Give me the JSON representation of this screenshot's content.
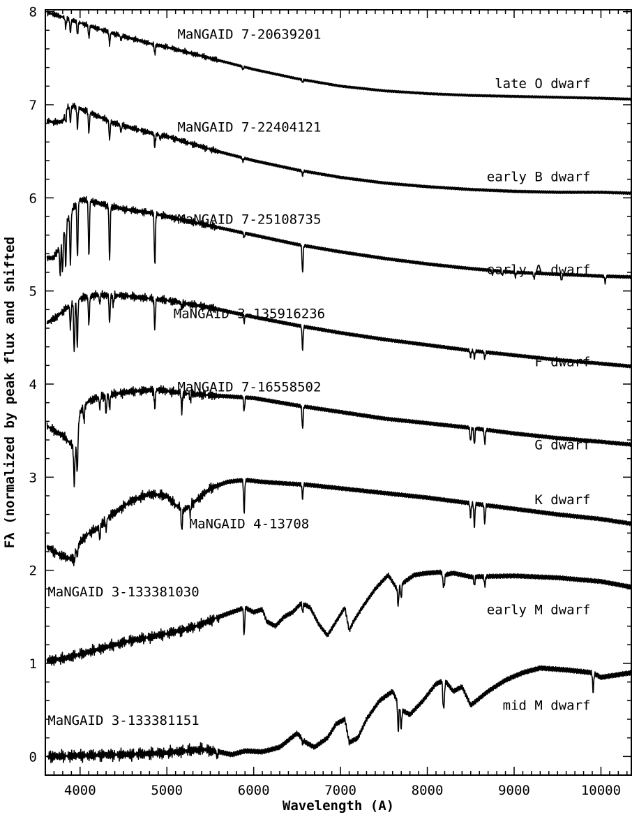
{
  "chart_data": {
    "type": "line",
    "title": "",
    "xlabel": "Wavelength (A)",
    "ylabel": "Fλ (normalized by peak flux and shifted",
    "xlim": [
      3600,
      10350
    ],
    "ylim": [
      -0.2,
      8.02
    ],
    "x_ticks": [
      4000,
      5000,
      6000,
      7000,
      8000,
      9000,
      10000
    ],
    "y_ticks": [
      0,
      1,
      2,
      3,
      4,
      5,
      6,
      7,
      8
    ],
    "grid": false,
    "legend": "none",
    "line_color": "#000000",
    "spectra": [
      {
        "id": "MaNGAID 7-20639201",
        "class": "late O dwarf",
        "offset": 7,
        "x": [
          3620,
          3700,
          3800,
          3900,
          4000,
          4200,
          4400,
          4600,
          4800,
          5000,
          5500,
          6000,
          6500,
          7000,
          7500,
          8000,
          8500,
          9000,
          9500,
          10000,
          10350
        ],
        "y": [
          0.99,
          0.97,
          0.94,
          0.91,
          0.88,
          0.82,
          0.76,
          0.71,
          0.66,
          0.62,
          0.5,
          0.38,
          0.28,
          0.2,
          0.15,
          0.12,
          0.1,
          0.09,
          0.08,
          0.07,
          0.06
        ],
        "lines": [
          [
            3835,
            0.1
          ],
          [
            3889,
            0.14
          ],
          [
            3970,
            0.14
          ],
          [
            4102,
            0.13
          ],
          [
            4340,
            0.13
          ],
          [
            4471,
            0.05
          ],
          [
            4861,
            0.1
          ],
          [
            5876,
            0.03
          ],
          [
            6563,
            0.03
          ]
        ]
      },
      {
        "id": "MaNGAID 7-22404121",
        "class": "early B dwarf",
        "offset": 6,
        "x": [
          3620,
          3700,
          3800,
          3850,
          3900,
          4000,
          4200,
          4400,
          4600,
          4800,
          5000,
          5500,
          6000,
          6500,
          7000,
          7500,
          8000,
          8500,
          9000,
          9500,
          10000,
          10350
        ],
        "y": [
          0.83,
          0.81,
          0.82,
          0.97,
          0.99,
          0.96,
          0.88,
          0.8,
          0.75,
          0.7,
          0.66,
          0.52,
          0.4,
          0.3,
          0.22,
          0.16,
          0.12,
          0.09,
          0.07,
          0.06,
          0.06,
          0.05
        ],
        "lines": [
          [
            3835,
            0.12
          ],
          [
            3889,
            0.18
          ],
          [
            3970,
            0.22
          ],
          [
            4102,
            0.22
          ],
          [
            4340,
            0.2
          ],
          [
            4471,
            0.08
          ],
          [
            4861,
            0.14
          ],
          [
            4922,
            0.05
          ],
          [
            5876,
            0.04
          ],
          [
            6563,
            0.05
          ]
        ]
      },
      {
        "id": "MaNGAID 7-25108735",
        "class": "early A dwarf",
        "offset": 5,
        "x": [
          3620,
          3700,
          3750,
          3800,
          3850,
          3900,
          3950,
          4000,
          4100,
          4300,
          4500,
          4800,
          5000,
          5500,
          6000,
          6500,
          7000,
          7500,
          8000,
          8500,
          9000,
          9500,
          10000,
          10350
        ],
        "y": [
          0.35,
          0.36,
          0.45,
          0.6,
          0.75,
          0.85,
          0.93,
          0.98,
          0.97,
          0.92,
          0.88,
          0.84,
          0.8,
          0.7,
          0.6,
          0.5,
          0.42,
          0.35,
          0.29,
          0.24,
          0.2,
          0.18,
          0.16,
          0.15
        ],
        "lines": [
          [
            3771,
            0.35
          ],
          [
            3798,
            0.4
          ],
          [
            3835,
            0.45
          ],
          [
            3889,
            0.55
          ],
          [
            3970,
            0.6
          ],
          [
            4102,
            0.6
          ],
          [
            4340,
            0.58
          ],
          [
            4861,
            0.55
          ],
          [
            5890,
            0.05
          ],
          [
            6563,
            0.3
          ],
          [
            8750,
            0.04
          ],
          [
            8863,
            0.04
          ],
          [
            9015,
            0.05
          ],
          [
            9229,
            0.06
          ],
          [
            9546,
            0.07
          ],
          [
            10049,
            0.07
          ]
        ]
      },
      {
        "id": "MaNGAID 3-135916236",
        "class": "F dwarf",
        "offset": 4,
        "x": [
          3620,
          3700,
          3800,
          3900,
          4000,
          4200,
          4500,
          4800,
          5000,
          5500,
          6000,
          6500,
          7000,
          7500,
          8000,
          8500,
          9000,
          9500,
          10000,
          10350
        ],
        "y": [
          0.66,
          0.7,
          0.78,
          0.86,
          0.92,
          0.96,
          0.95,
          0.92,
          0.9,
          0.82,
          0.72,
          0.63,
          0.55,
          0.48,
          0.42,
          0.36,
          0.31,
          0.26,
          0.22,
          0.19
        ],
        "lines": [
          [
            3889,
            0.25
          ],
          [
            3933,
            0.55
          ],
          [
            3968,
            0.5
          ],
          [
            4102,
            0.3
          ],
          [
            4227,
            0.1
          ],
          [
            4340,
            0.3
          ],
          [
            4383,
            0.1
          ],
          [
            4861,
            0.32
          ],
          [
            5172,
            0.06
          ],
          [
            5890,
            0.08
          ],
          [
            6563,
            0.25
          ],
          [
            8498,
            0.07
          ],
          [
            8542,
            0.08
          ],
          [
            8662,
            0.07
          ]
        ]
      },
      {
        "id": "MaNGAID 7-16558502",
        "class": "G dwarf",
        "offset": 3,
        "x": [
          3620,
          3700,
          3800,
          3900,
          3950,
          4000,
          4100,
          4300,
          4600,
          4900,
          5200,
          5500,
          6000,
          6500,
          7000,
          7500,
          8000,
          8500,
          9000,
          9500,
          10000,
          10350
        ],
        "y": [
          0.55,
          0.5,
          0.45,
          0.35,
          0.3,
          0.7,
          0.82,
          0.88,
          0.92,
          0.94,
          0.9,
          0.88,
          0.85,
          0.77,
          0.7,
          0.63,
          0.58,
          0.53,
          0.47,
          0.42,
          0.38,
          0.35
        ],
        "lines": [
          [
            3933,
            0.4
          ],
          [
            3968,
            0.4
          ],
          [
            4045,
            0.15
          ],
          [
            4227,
            0.12
          ],
          [
            4300,
            0.2
          ],
          [
            4340,
            0.15
          ],
          [
            4861,
            0.2
          ],
          [
            5172,
            0.2
          ],
          [
            5270,
            0.08
          ],
          [
            5890,
            0.15
          ],
          [
            6563,
            0.25
          ],
          [
            8498,
            0.15
          ],
          [
            8542,
            0.18
          ],
          [
            8662,
            0.15
          ]
        ]
      },
      {
        "id": "MaNGAID 4-13708",
        "class": "K dwarf",
        "offset": 2,
        "x": [
          3620,
          3700,
          3800,
          3900,
          4000,
          4100,
          4200,
          4300,
          4400,
          4600,
          4800,
          5000,
          5100,
          5200,
          5300,
          5500,
          5700,
          5900,
          6100,
          6400,
          6600,
          7000,
          7500,
          8000,
          8500,
          9000,
          9500,
          10000,
          10350
        ],
        "y": [
          0.25,
          0.2,
          0.15,
          0.12,
          0.3,
          0.4,
          0.45,
          0.55,
          0.62,
          0.75,
          0.82,
          0.8,
          0.7,
          0.65,
          0.72,
          0.88,
          0.95,
          0.97,
          0.95,
          0.93,
          0.92,
          0.88,
          0.83,
          0.78,
          0.72,
          0.66,
          0.6,
          0.55,
          0.5
        ],
        "lines": [
          [
            3933,
            0.1
          ],
          [
            3968,
            0.1
          ],
          [
            4227,
            0.15
          ],
          [
            4300,
            0.12
          ],
          [
            5172,
            0.25
          ],
          [
            5270,
            0.1
          ],
          [
            5890,
            0.35
          ],
          [
            6563,
            0.15
          ],
          [
            8498,
            0.15
          ],
          [
            8542,
            0.25
          ],
          [
            8662,
            0.2
          ]
        ]
      },
      {
        "id": "MaNGAID 3-133381030",
        "class": "early M dwarf",
        "offset": 1,
        "x": [
          3620,
          3800,
          4000,
          4200,
          4400,
          4600,
          4800,
          5000,
          5200,
          5400,
          5600,
          5750,
          5900,
          6000,
          6100,
          6150,
          6250,
          6350,
          6450,
          6550,
          6650,
          6750,
          6850,
          6950,
          7050,
          7100,
          7150,
          7250,
          7400,
          7550,
          7650,
          7700,
          7850,
          8000,
          8150,
          8200,
          8300,
          8500,
          9000,
          9500,
          10000,
          10350
        ],
        "y": [
          0.03,
          0.05,
          0.1,
          0.15,
          0.2,
          0.25,
          0.28,
          0.32,
          0.36,
          0.42,
          0.5,
          0.55,
          0.6,
          0.55,
          0.58,
          0.45,
          0.4,
          0.5,
          0.55,
          0.65,
          0.6,
          0.42,
          0.3,
          0.45,
          0.6,
          0.35,
          0.45,
          0.6,
          0.8,
          0.95,
          0.8,
          0.85,
          0.95,
          0.97,
          0.98,
          0.95,
          0.97,
          0.93,
          0.94,
          0.92,
          0.88,
          0.82
        ],
        "lines": [
          [
            5890,
            0.3
          ],
          [
            6563,
            0.1
          ],
          [
            7665,
            0.2
          ],
          [
            7699,
            0.15
          ],
          [
            8183,
            0.1
          ],
          [
            8195,
            0.1
          ],
          [
            8542,
            0.1
          ],
          [
            8662,
            0.1
          ]
        ]
      },
      {
        "id": "MaNGAID 3-133381151",
        "class": "mid M dwarf",
        "offset": 0,
        "x": [
          3620,
          4000,
          4500,
          5000,
          5400,
          5600,
          5750,
          5900,
          6100,
          6300,
          6500,
          6600,
          6700,
          6850,
          6950,
          7050,
          7100,
          7200,
          7300,
          7450,
          7600,
          7700,
          7800,
          7950,
          8100,
          8200,
          8300,
          8400,
          8500,
          8700,
          8900,
          9100,
          9300,
          9600,
          9900,
          10000,
          10350
        ],
        "y": [
          0,
          0.01,
          0.02,
          0.04,
          0.08,
          0.05,
          0.02,
          0.06,
          0.05,
          0.1,
          0.25,
          0.15,
          0.1,
          0.2,
          0.35,
          0.4,
          0.15,
          0.2,
          0.4,
          0.6,
          0.7,
          0.5,
          0.45,
          0.6,
          0.78,
          0.82,
          0.7,
          0.75,
          0.55,
          0.7,
          0.82,
          0.9,
          0.95,
          0.93,
          0.9,
          0.85,
          0.9
        ],
        "lines": [
          [
            5577,
            0.06
          ],
          [
            6563,
            0.05
          ],
          [
            7665,
            0.3
          ],
          [
            7699,
            0.2
          ],
          [
            8183,
            0.25
          ],
          [
            8195,
            0.2
          ],
          [
            9910,
            0.2
          ]
        ]
      }
    ],
    "annotations": [
      {
        "text": "MaNGAID 7-20639201",
        "x": 5950,
        "y": 7.71
      },
      {
        "text": "late O dwarf",
        "x": 9880,
        "y": 7.18
      },
      {
        "text": "MaNGAID 7-22404121",
        "x": 5950,
        "y": 6.71
      },
      {
        "text": "early B dwarf",
        "x": 9880,
        "y": 6.18
      },
      {
        "text": "MaNGAID 7-25108735",
        "x": 5950,
        "y": 5.72
      },
      {
        "text": "early A dwarf",
        "x": 9880,
        "y": 5.18
      },
      {
        "text": "MaNGAID 3-135916236",
        "x": 5950,
        "y": 4.71
      },
      {
        "text": "F dwarf",
        "x": 9880,
        "y": 4.19
      },
      {
        "text": "MaNGAID 7-16558502",
        "x": 5950,
        "y": 3.92
      },
      {
        "text": "G dwarf",
        "x": 9880,
        "y": 3.3
      },
      {
        "text": "K dwarf",
        "x": 9880,
        "y": 2.71
      },
      {
        "text": "MaNGAID 4-13708",
        "x": 5950,
        "y": 2.45
      },
      {
        "text": "MaNGAID 3-133381030",
        "x": 4500,
        "y": 1.72
      },
      {
        "text": "early M dwarf",
        "x": 9880,
        "y": 1.53
      },
      {
        "text": "mid M dwarf",
        "x": 9880,
        "y": 0.5
      },
      {
        "text": "MaNGAID 3-133381151",
        "x": 4500,
        "y": 0.34
      }
    ]
  }
}
